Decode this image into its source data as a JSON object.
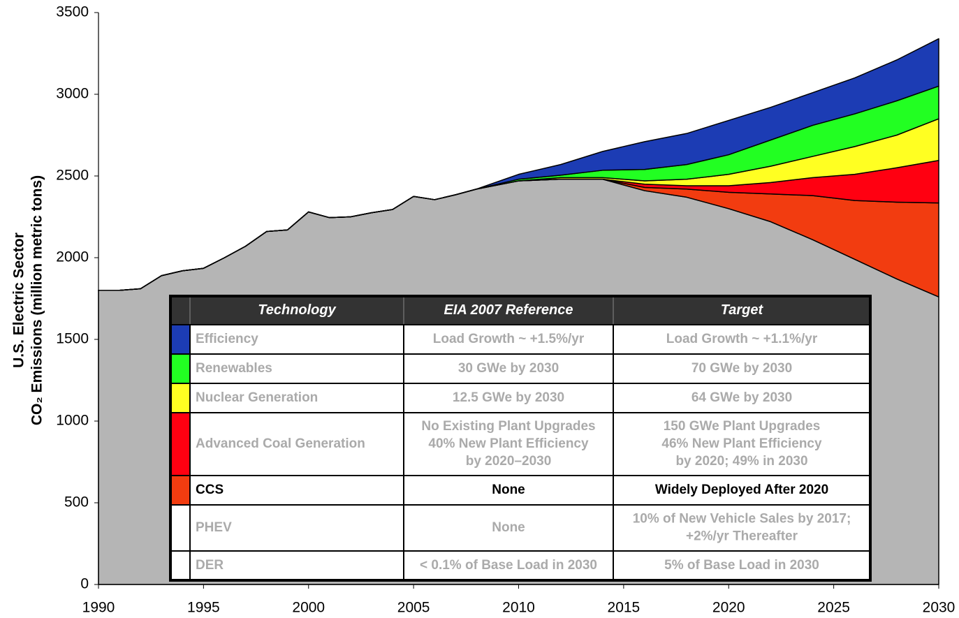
{
  "chart_data": {
    "type": "stacked_area",
    "ylabel": [
      "U.S. Electric Sector",
      "CO₂ Emissions (million metric tons)"
    ],
    "x": [
      1990,
      1991,
      1992,
      1993,
      1994,
      1995,
      1996,
      1997,
      1998,
      1999,
      2000,
      2001,
      2002,
      2003,
      2004,
      2005,
      2006,
      2007,
      2008,
      2010,
      2012,
      2014,
      2016,
      2018,
      2020,
      2022,
      2024,
      2026,
      2028,
      2030
    ],
    "series": [
      {
        "name": "Efficiency",
        "color": "#1c3cb4",
        "values": [
          0,
          0,
          0,
          0,
          0,
          0,
          0,
          0,
          0,
          0,
          0,
          0,
          0,
          0,
          0,
          0,
          0,
          0,
          0,
          30,
          65,
          115,
          170,
          190,
          210,
          200,
          200,
          220,
          250,
          290
        ]
      },
      {
        "name": "Renewables",
        "color": "#22ff22",
        "values": [
          0,
          0,
          0,
          0,
          0,
          0,
          0,
          0,
          0,
          0,
          0,
          0,
          0,
          0,
          0,
          0,
          0,
          0,
          0,
          10,
          15,
          45,
          70,
          90,
          120,
          160,
          190,
          200,
          210,
          200
        ]
      },
      {
        "name": "Nuclear Generation",
        "color": "#ffff22",
        "values": [
          0,
          0,
          0,
          0,
          0,
          0,
          0,
          0,
          0,
          0,
          0,
          0,
          0,
          0,
          0,
          0,
          0,
          0,
          0,
          0,
          10,
          10,
          20,
          40,
          70,
          100,
          130,
          170,
          200,
          255
        ]
      },
      {
        "name": "Advanced Coal Generation",
        "color": "#ff0011",
        "values": [
          0,
          0,
          0,
          0,
          0,
          0,
          0,
          0,
          0,
          0,
          0,
          0,
          0,
          0,
          0,
          0,
          0,
          0,
          0,
          0,
          0,
          0,
          20,
          20,
          40,
          70,
          110,
          160,
          210,
          260
        ]
      },
      {
        "name": "CCS",
        "color": "#f23c10",
        "values": [
          0,
          0,
          0,
          0,
          0,
          0,
          0,
          0,
          0,
          0,
          0,
          0,
          0,
          0,
          0,
          0,
          0,
          0,
          0,
          0,
          0,
          0,
          20,
          50,
          100,
          170,
          270,
          360,
          470,
          575
        ]
      },
      {
        "color": "#b5b5b5",
        "values": [
          1800,
          1800,
          1810,
          1890,
          1920,
          1935,
          2000,
          2070,
          2160,
          2170,
          2280,
          2245,
          2250,
          2275,
          2295,
          2375,
          2355,
          2385,
          2420,
          2470,
          2480,
          2480,
          2410,
          2370,
          2300,
          2220,
          2110,
          1990,
          1870,
          1760
        ]
      }
    ],
    "xlim": [
      1990,
      2030
    ],
    "xticks": [
      1990,
      1995,
      2000,
      2005,
      2010,
      2015,
      2020,
      2025,
      2030
    ],
    "ylim": [
      0,
      3500
    ],
    "yticks": [
      0,
      500,
      1000,
      1500,
      2000,
      2500,
      3000,
      3500
    ],
    "table": {
      "columns": [
        "Technology",
        "EIA 2007 Reference",
        "Target"
      ],
      "rows": [
        {
          "reference": [
            "Load Growth ~ +1.5%/yr"
          ],
          "target": [
            "Load Growth ~ +1.1%/yr"
          ]
        },
        {
          "reference": [
            "30 GWe by 2030"
          ],
          "target": [
            "70 GWe by 2030"
          ]
        },
        {
          "reference": [
            "12.5 GWe by 2030"
          ],
          "target": [
            "64 GWe by 2030"
          ]
        },
        {
          "reference": [
            "No Existing Plant Upgrades",
            "40% New Plant Efficiency",
            "by 2020–2030"
          ],
          "target": [
            "150 GWe Plant Upgrades",
            "46% New Plant Efficiency",
            "by 2020; 49% in 2030"
          ]
        },
        {
          "reference": [
            "None"
          ],
          "target": [
            "Widely Deployed After 2020"
          ],
          "bold": true
        },
        {
          "technology": "PHEV",
          "reference": [
            "None"
          ],
          "target": [
            "10% of New Vehicle Sales by 2017;",
            "+2%/yr Thereafter"
          ]
        },
        {
          "technology": "DER",
          "reference": [
            "< 0.1% of Base Load in 2030"
          ],
          "target": [
            "5% of Base Load in 2030"
          ]
        }
      ]
    }
  }
}
